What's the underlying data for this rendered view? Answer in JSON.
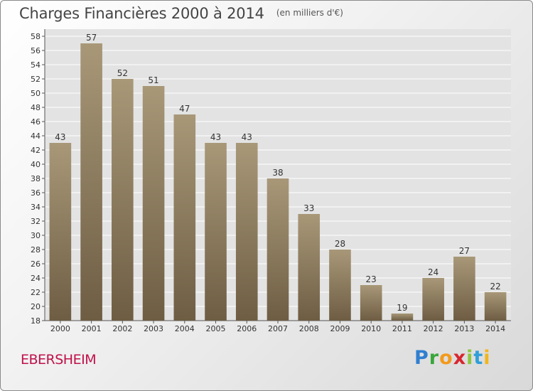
{
  "header": {
    "title": "Charges Financières 2000 à 2014",
    "subtitle": "(en milliers d'€)"
  },
  "footer": {
    "commune": "EBERSHEIM",
    "logo_letters": [
      "P",
      "r",
      "o",
      "x",
      "i",
      "t",
      "i"
    ]
  },
  "colors": {
    "bar_top": "#a89878",
    "bar_bottom": "#6e5d43",
    "plot_bg": "#e3e3e3",
    "commune": "#c0114a"
  },
  "chart_data": {
    "type": "bar",
    "categories": [
      "2000",
      "2001",
      "2002",
      "2003",
      "2004",
      "2005",
      "2006",
      "2007",
      "2008",
      "2009",
      "2010",
      "2011",
      "2012",
      "2013",
      "2014"
    ],
    "values": [
      43,
      57,
      52,
      51,
      47,
      43,
      43,
      38,
      33,
      28,
      23,
      19,
      24,
      27,
      22
    ],
    "data_labels": [
      "43",
      "57",
      "52",
      "51",
      "47",
      "43",
      "43",
      "38",
      "33",
      "28",
      "23",
      "19",
      "24",
      "27",
      "22"
    ],
    "ylim": [
      18,
      59
    ],
    "yticks": [
      18,
      20,
      22,
      24,
      26,
      28,
      30,
      32,
      34,
      36,
      38,
      40,
      42,
      44,
      46,
      48,
      50,
      52,
      54,
      56,
      58
    ],
    "ytick_labels": [
      "18",
      "20",
      "22",
      "24",
      "26",
      "28",
      "30",
      "32",
      "34",
      "36",
      "38",
      "40",
      "42",
      "44",
      "46",
      "48",
      "50",
      "52",
      "54",
      "56",
      "58"
    ],
    "grid": true
  }
}
